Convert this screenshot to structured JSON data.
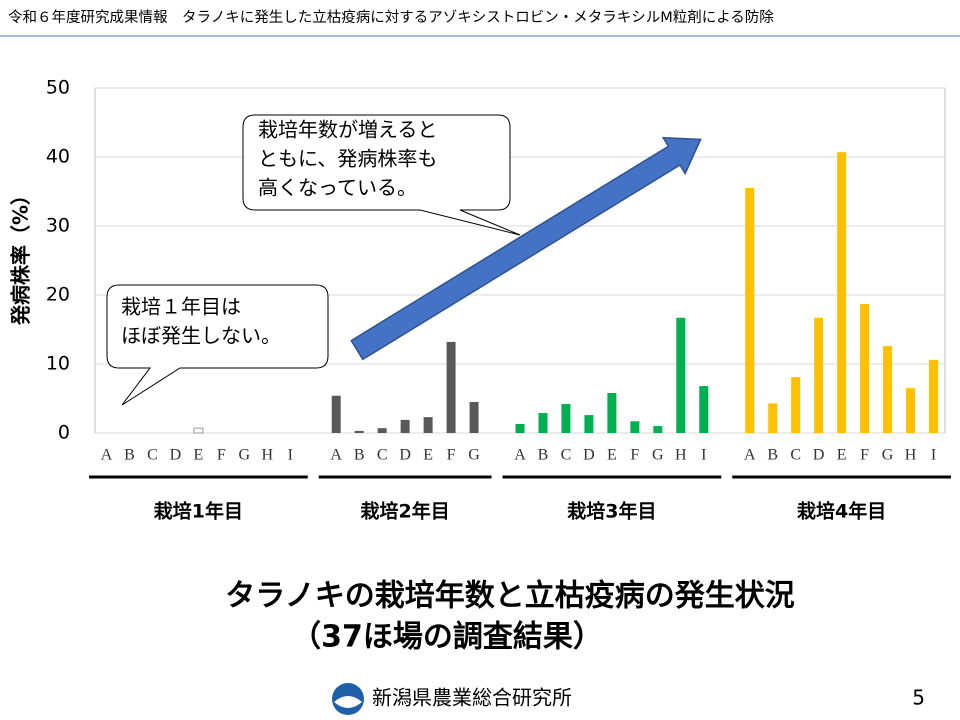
{
  "header": "令和６年度研究成果情報　タラノキに発生した立枯疫病に対するアゾキシストロビン・メタラキシルM粒剤による防除",
  "chart_data": {
    "type": "bar",
    "y_label": "発病株率（%）",
    "ylim": [
      0,
      50
    ],
    "yticks": [
      0,
      10,
      20,
      30,
      40,
      50
    ],
    "grid": true,
    "groups": [
      {
        "label": "栽培1年目",
        "color": "#ffffff",
        "categories": [
          "A",
          "B",
          "C",
          "D",
          "E",
          "F",
          "G",
          "H",
          "I"
        ],
        "values": [
          0,
          0,
          0,
          0,
          0.7,
          0,
          0,
          0,
          0
        ]
      },
      {
        "label": "栽培2年目",
        "color": "#595959",
        "categories": [
          "A",
          "B",
          "C",
          "D",
          "E",
          "F",
          "G"
        ],
        "values": [
          5.4,
          0.3,
          0.7,
          1.9,
          2.3,
          13.2,
          4.5
        ]
      },
      {
        "label": "栽培3年目",
        "color": "#00b050",
        "categories": [
          "A",
          "B",
          "C",
          "D",
          "E",
          "F",
          "G",
          "H",
          "I"
        ],
        "values": [
          1.3,
          2.9,
          4.2,
          2.6,
          5.8,
          1.7,
          1.0,
          16.7,
          6.8
        ]
      },
      {
        "label": "栽培4年目",
        "color": "#ffc000",
        "categories": [
          "A",
          "B",
          "C",
          "D",
          "E",
          "F",
          "G",
          "H",
          "I"
        ],
        "values": [
          35.5,
          4.3,
          8.1,
          16.7,
          40.7,
          18.7,
          12.6,
          6.5,
          10.6
        ]
      }
    ],
    "annotations": [
      {
        "lines": [
          "栽培年数が増えると",
          "ともに、発病株率も",
          "高くなっている。"
        ]
      },
      {
        "lines": [
          "栽培１年目は",
          "ほぼ発生しない。"
        ]
      }
    ]
  },
  "caption": [
    "タラノキの栽培年数と立枯疫病の発生状況",
    "（37ほ場の調査結果）"
  ],
  "footer": {
    "org": "新潟県農業総合研究所",
    "page": 5
  }
}
